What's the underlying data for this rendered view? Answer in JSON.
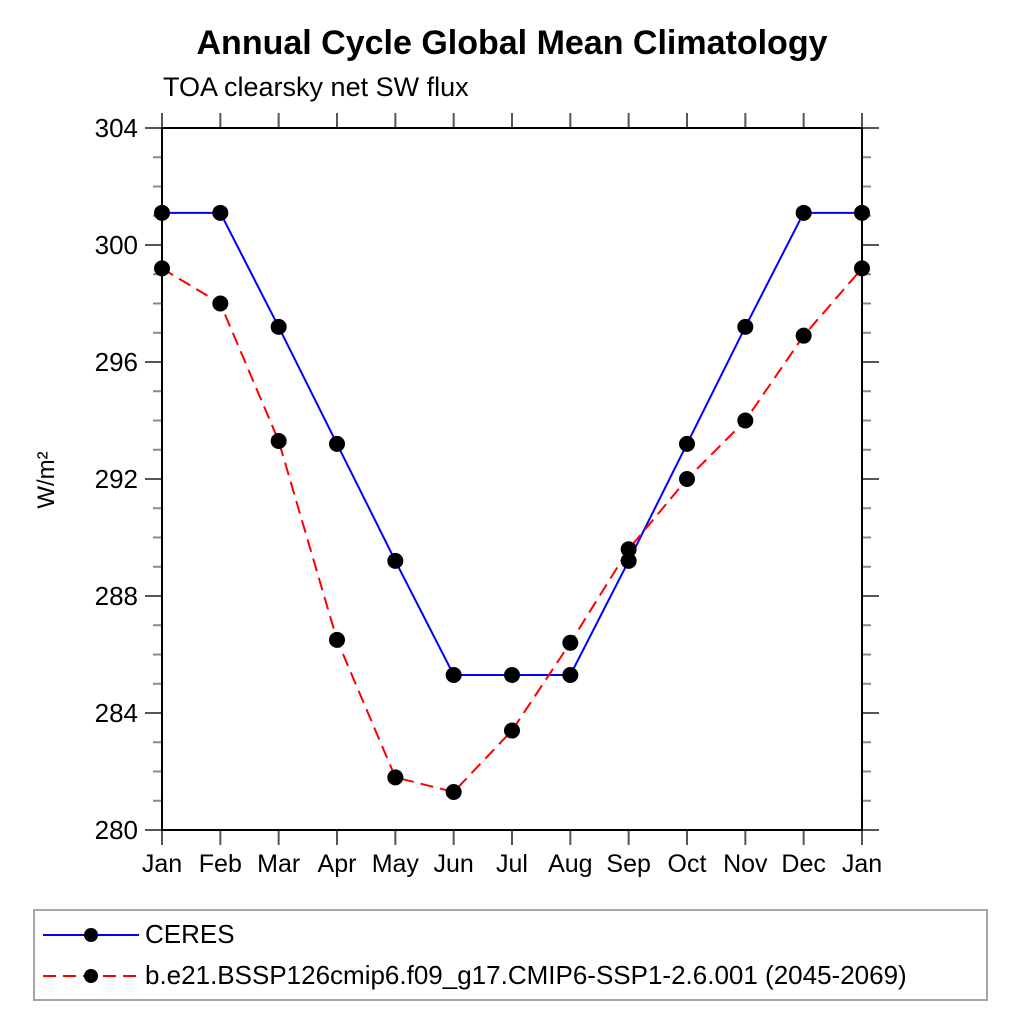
{
  "chart_data": {
    "type": "line",
    "title": "Annual Cycle Global Mean Climatology",
    "subtitle": "TOA clearsky net SW flux",
    "ylabel": "W/m²",
    "x_tick_labels": [
      "Jan",
      "Feb",
      "Mar",
      "Apr",
      "May",
      "Jun",
      "Jul",
      "Aug",
      "Sep",
      "Oct",
      "Nov",
      "Dec",
      "Jan"
    ],
    "y_ticks_major": [
      280,
      284,
      288,
      292,
      296,
      300,
      304
    ],
    "y_minor_step": 1,
    "ylim": [
      280,
      304
    ],
    "grid": false,
    "legend_position": "bottom-left-box",
    "series": [
      {
        "name": "CERES",
        "color": "#0000ff",
        "style": "solid",
        "marker": "circle",
        "marker_color": "#000000",
        "values": [
          301.1,
          301.1,
          297.2,
          293.2,
          289.2,
          285.3,
          285.3,
          285.3,
          289.2,
          293.2,
          297.2,
          301.1,
          301.1
        ]
      },
      {
        "name": "b.e21.BSSP126cmip6.f09_g17.CMIP6-SSP1-2.6.001 (2045-2069)",
        "color": "#ff0000",
        "style": "dashed",
        "marker": "circle",
        "marker_color": "#000000",
        "values": [
          299.2,
          298.0,
          293.3,
          286.5,
          281.8,
          281.3,
          283.4,
          286.4,
          289.6,
          292.0,
          294.0,
          296.9,
          299.2
        ]
      }
    ],
    "frame_color": "#000000",
    "tick_color_major": "#555555",
    "tick_color_minor": "#888888"
  }
}
